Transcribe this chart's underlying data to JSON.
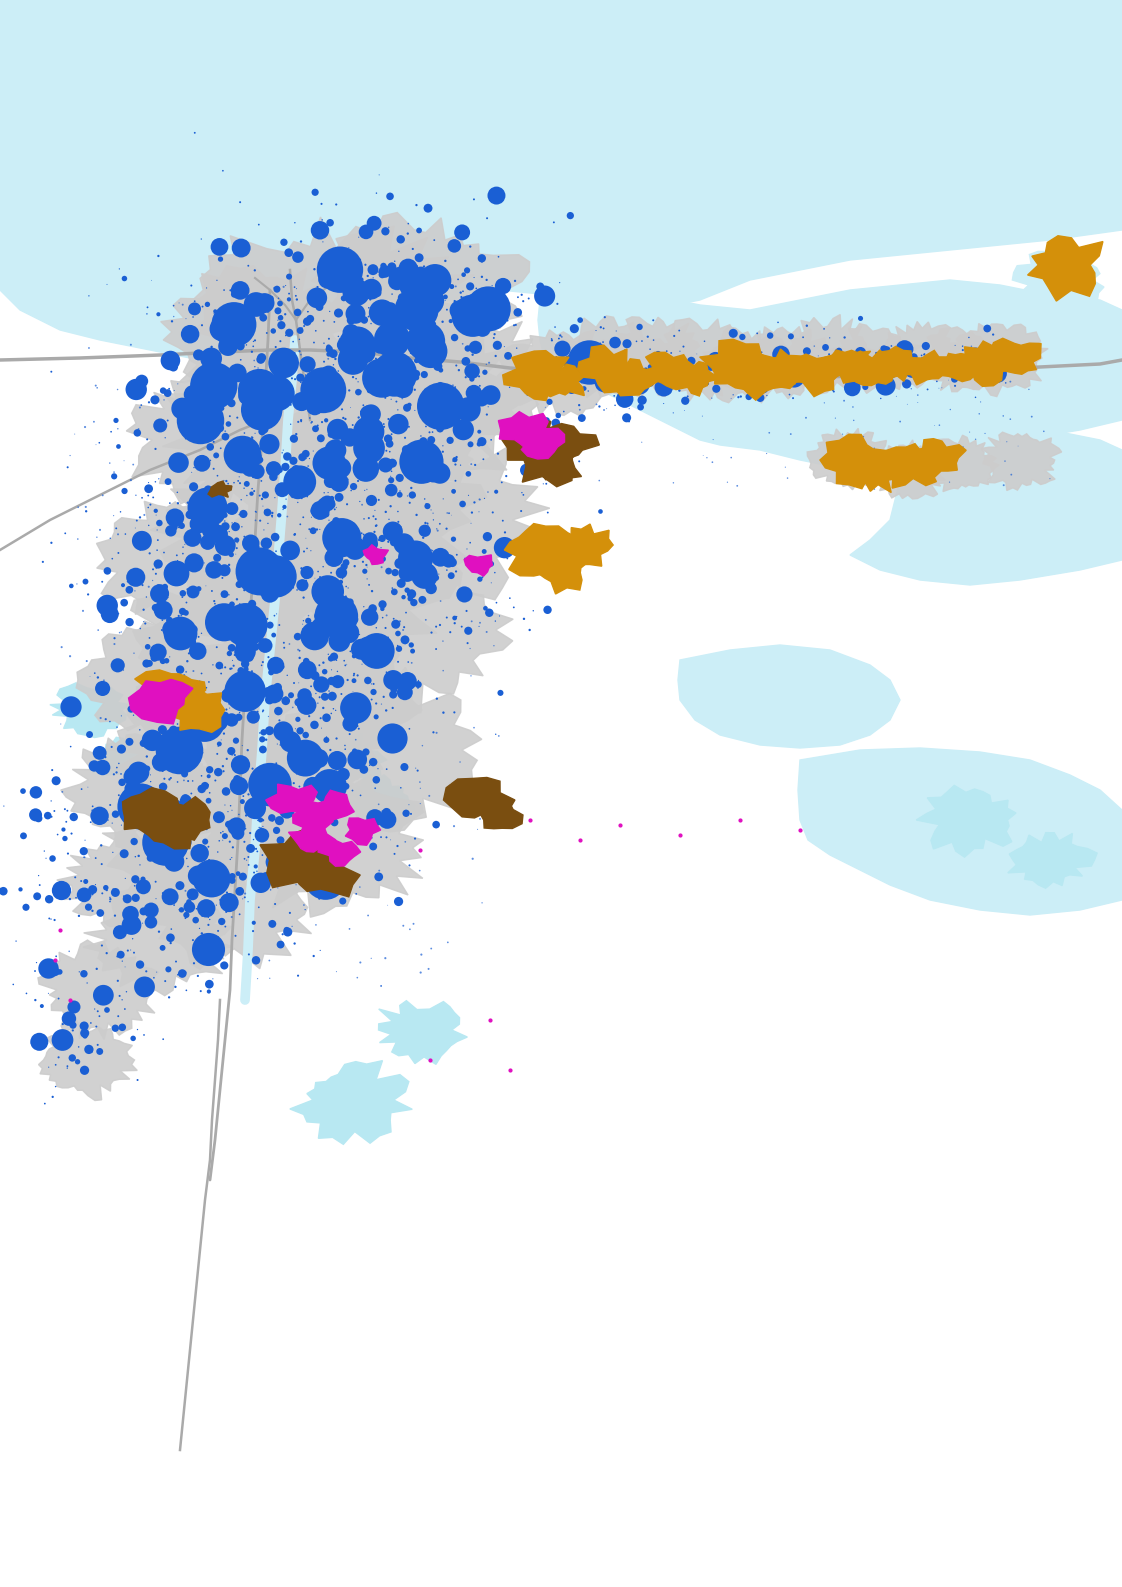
{
  "background_color": "#ffffff",
  "water_color": "#cceef7",
  "water_color2": "#b8e8f2",
  "urban_color": "#cccccc",
  "road_color": "#aaaaaa",
  "blue_dot_color": "#1a5fd4",
  "orange_patch_color": "#d4900a",
  "magenta_patch_color": "#e010c0",
  "brown_patch_color": "#7a4e10",
  "figsize": [
    11.22,
    15.87
  ],
  "dpi": 100
}
